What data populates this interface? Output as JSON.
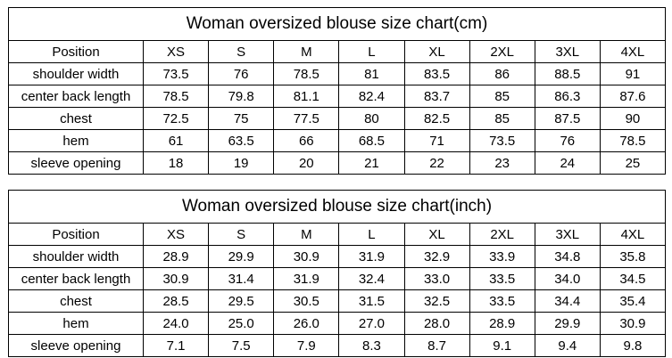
{
  "tables": [
    {
      "title": "Woman oversized blouse size chart(cm)",
      "header": [
        "Position",
        "XS",
        "S",
        "M",
        "L",
        "XL",
        "2XL",
        "3XL",
        "4XL"
      ],
      "rows": [
        [
          "shoulder width",
          "73.5",
          "76",
          "78.5",
          "81",
          "83.5",
          "86",
          "88.5",
          "91"
        ],
        [
          "center back length",
          "78.5",
          "79.8",
          "81.1",
          "82.4",
          "83.7",
          "85",
          "86.3",
          "87.6"
        ],
        [
          "chest",
          "72.5",
          "75",
          "77.5",
          "80",
          "82.5",
          "85",
          "87.5",
          "90"
        ],
        [
          "hem",
          "61",
          "63.5",
          "66",
          "68.5",
          "71",
          "73.5",
          "76",
          "78.5"
        ],
        [
          "sleeve opening",
          "18",
          "19",
          "20",
          "21",
          "22",
          "23",
          "24",
          "25"
        ]
      ]
    },
    {
      "title": "Woman oversized blouse size chart(inch)",
      "header": [
        "Position",
        "XS",
        "S",
        "M",
        "L",
        "XL",
        "2XL",
        "3XL",
        "4XL"
      ],
      "rows": [
        [
          "shoulder width",
          "28.9",
          "29.9",
          "30.9",
          "31.9",
          "32.9",
          "33.9",
          "34.8",
          "35.8"
        ],
        [
          "center back length",
          "30.9",
          "31.4",
          "31.9",
          "32.4",
          "33.0",
          "33.5",
          "34.0",
          "34.5"
        ],
        [
          "chest",
          "28.5",
          "29.5",
          "30.5",
          "31.5",
          "32.5",
          "33.5",
          "34.4",
          "35.4"
        ],
        [
          "hem",
          "24.0",
          "25.0",
          "26.0",
          "27.0",
          "28.0",
          "28.9",
          "29.9",
          "30.9"
        ],
        [
          "sleeve opening",
          "7.1",
          "7.5",
          "7.9",
          "8.3",
          "8.7",
          "9.1",
          "9.4",
          "9.8"
        ]
      ]
    }
  ]
}
